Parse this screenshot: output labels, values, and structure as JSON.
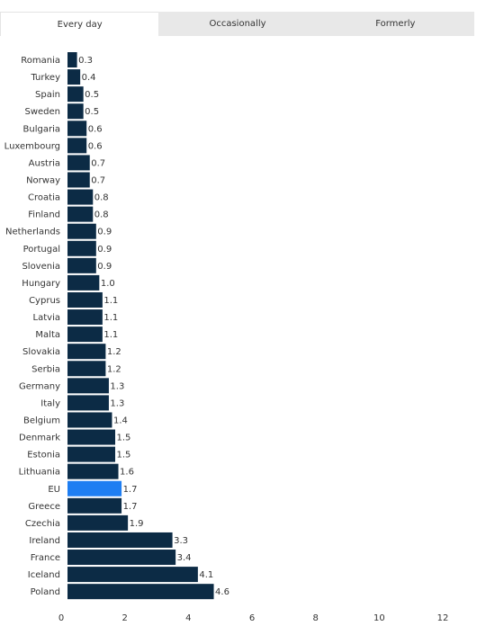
{
  "tabs": [
    {
      "label": "Every day",
      "active": true
    },
    {
      "label": "Occasionally",
      "active": false
    },
    {
      "label": "Formerly",
      "active": false
    }
  ],
  "colors": {
    "bar": "#0c2b45",
    "highlight": "#1e7ef2",
    "tab_inactive": "#e8e8e8"
  },
  "chart_data": {
    "type": "bar",
    "orientation": "horizontal",
    "title": "",
    "xlabel": "",
    "ylabel": "",
    "xlim": [
      0,
      12
    ],
    "x_ticks": [
      0,
      2,
      4,
      6,
      8,
      10,
      12
    ],
    "grid": false,
    "legend": "none",
    "highlight_category": "EU",
    "categories": [
      "Romania",
      "Turkey",
      "Spain",
      "Sweden",
      "Bulgaria",
      "Luxembourg",
      "Austria",
      "Norway",
      "Croatia",
      "Finland",
      "Netherlands",
      "Portugal",
      "Slovenia",
      "Hungary",
      "Cyprus",
      "Latvia",
      "Malta",
      "Slovakia",
      "Serbia",
      "Germany",
      "Italy",
      "Belgium",
      "Denmark",
      "Estonia",
      "Lithuania",
      "EU",
      "Greece",
      "Czechia",
      "Ireland",
      "France",
      "Iceland",
      "Poland"
    ],
    "values": [
      0.3,
      0.4,
      0.5,
      0.5,
      0.6,
      0.6,
      0.7,
      0.7,
      0.8,
      0.8,
      0.9,
      0.9,
      0.9,
      1.0,
      1.1,
      1.1,
      1.1,
      1.2,
      1.2,
      1.3,
      1.3,
      1.4,
      1.5,
      1.5,
      1.6,
      1.7,
      1.7,
      1.9,
      3.3,
      3.4,
      4.1,
      4.6
    ],
    "value_labels": [
      "0.3",
      "0.4",
      "0.5",
      "0.5",
      "0.6",
      "0.6",
      "0.7",
      "0.7",
      "0.8",
      "0.8",
      "0.9",
      "0.9",
      "0.9",
      "1.0",
      "1.1",
      "1.1",
      "1.1",
      "1.2",
      "1.2",
      "1.3",
      "1.3",
      "1.4",
      "1.5",
      "1.5",
      "1.6",
      "1.7",
      "1.7",
      "1.9",
      "3.3",
      "3.4",
      "4.1",
      "4.6"
    ]
  }
}
